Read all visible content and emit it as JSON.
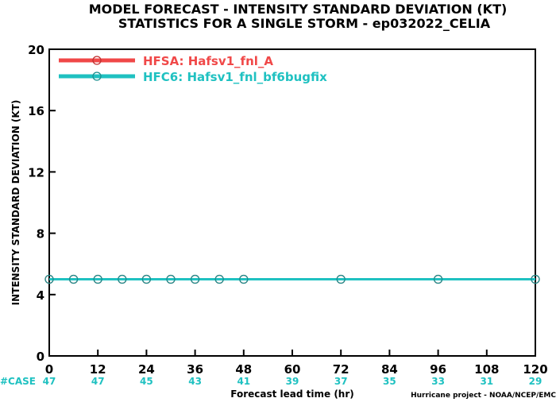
{
  "chart_data": {
    "type": "line",
    "title_line1": "MODEL FORECAST - INTENSITY STANDARD DEVIATION (KT)",
    "title_line2": "STATISTICS FOR A SINGLE STORM - ep032022_CELIA",
    "xlabel": "Forecast lead time (hr)",
    "ylabel": "INTENSITY STANDARD DEVIATION (KT)",
    "xlim": [
      0,
      120
    ],
    "ylim": [
      0,
      20
    ],
    "x_ticks": [
      0,
      12,
      24,
      36,
      48,
      60,
      72,
      84,
      96,
      108,
      120
    ],
    "y_ticks": [
      0,
      4,
      8,
      12,
      16,
      20
    ],
    "grid": false,
    "legend_position": "top-left",
    "series": [
      {
        "name": "HFSA: Hafsv1_fnl_A",
        "color": "#f04848",
        "x": [
          0,
          6,
          12,
          18,
          24,
          30,
          36,
          42,
          48,
          72,
          96,
          120
        ],
        "values": [
          5,
          5,
          5,
          5,
          5,
          5,
          5,
          5,
          5,
          5,
          5,
          5
        ]
      },
      {
        "name": "HFC6: Hafsv1_fnl_bf6bugfix",
        "color": "#1fc1c1",
        "x": [
          0,
          6,
          12,
          18,
          24,
          30,
          36,
          42,
          48,
          72,
          96,
          120
        ],
        "values": [
          5,
          5,
          5,
          5,
          5,
          5,
          5,
          5,
          5,
          5,
          5,
          5
        ]
      }
    ],
    "case_counts": {
      "label": "#CASE",
      "label_color": "#1fc1c1",
      "x": [
        0,
        12,
        24,
        36,
        48,
        60,
        72,
        84,
        96,
        108,
        120
      ],
      "series": [
        {
          "color": "#f04848",
          "values": [
            47,
            47,
            45,
            43,
            41,
            39,
            37,
            35,
            33,
            31,
            29
          ]
        },
        {
          "color": "#1fc1c1",
          "values": [
            47,
            47,
            45,
            43,
            41,
            39,
            37,
            35,
            33,
            31,
            29
          ]
        }
      ]
    },
    "footer": "Hurricane project - NOAA/NCEP/EMC"
  }
}
